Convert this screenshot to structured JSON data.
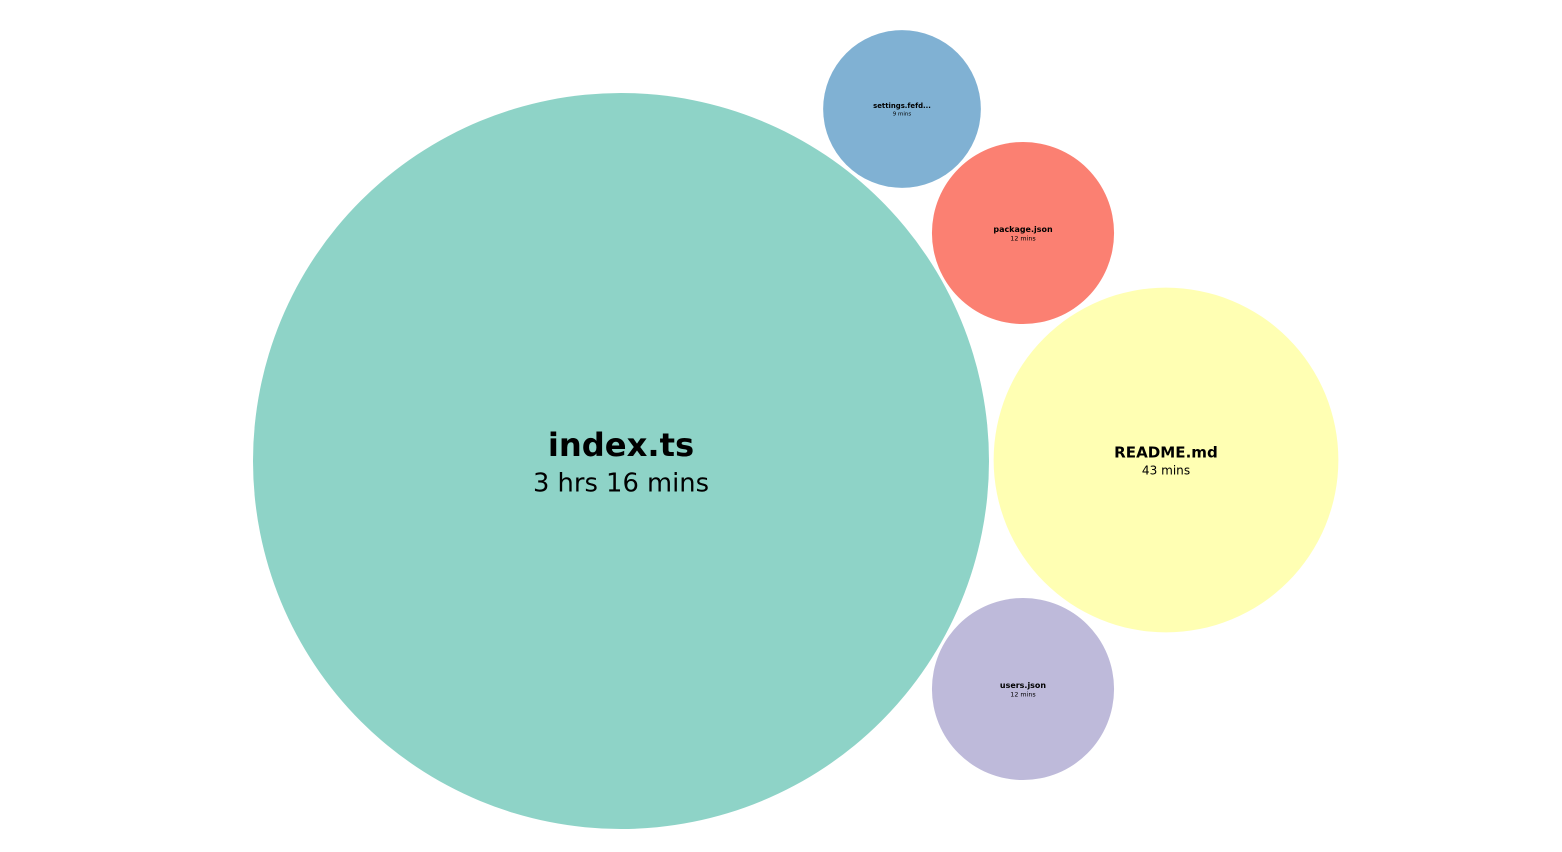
{
  "chart_data": {
    "type": "bubble",
    "title": "",
    "legend": "none",
    "unit": "minutes",
    "items": [
      {
        "label": "index.ts",
        "time_label": "3 hrs 16 mins",
        "minutes": 196,
        "color": "#8ed3c7"
      },
      {
        "label": "settings.fefd...",
        "time_label": "9 mins",
        "minutes": 9,
        "color": "#80b1d3"
      },
      {
        "label": "package.json",
        "time_label": "12 mins",
        "minutes": 12,
        "color": "#fb8072"
      },
      {
        "label": "README.md",
        "time_label": "43 mins",
        "minutes": 43,
        "color": "#ffffb3"
      },
      {
        "label": "users.json",
        "time_label": "12 mins",
        "minutes": 12,
        "color": "#bebada"
      }
    ]
  }
}
